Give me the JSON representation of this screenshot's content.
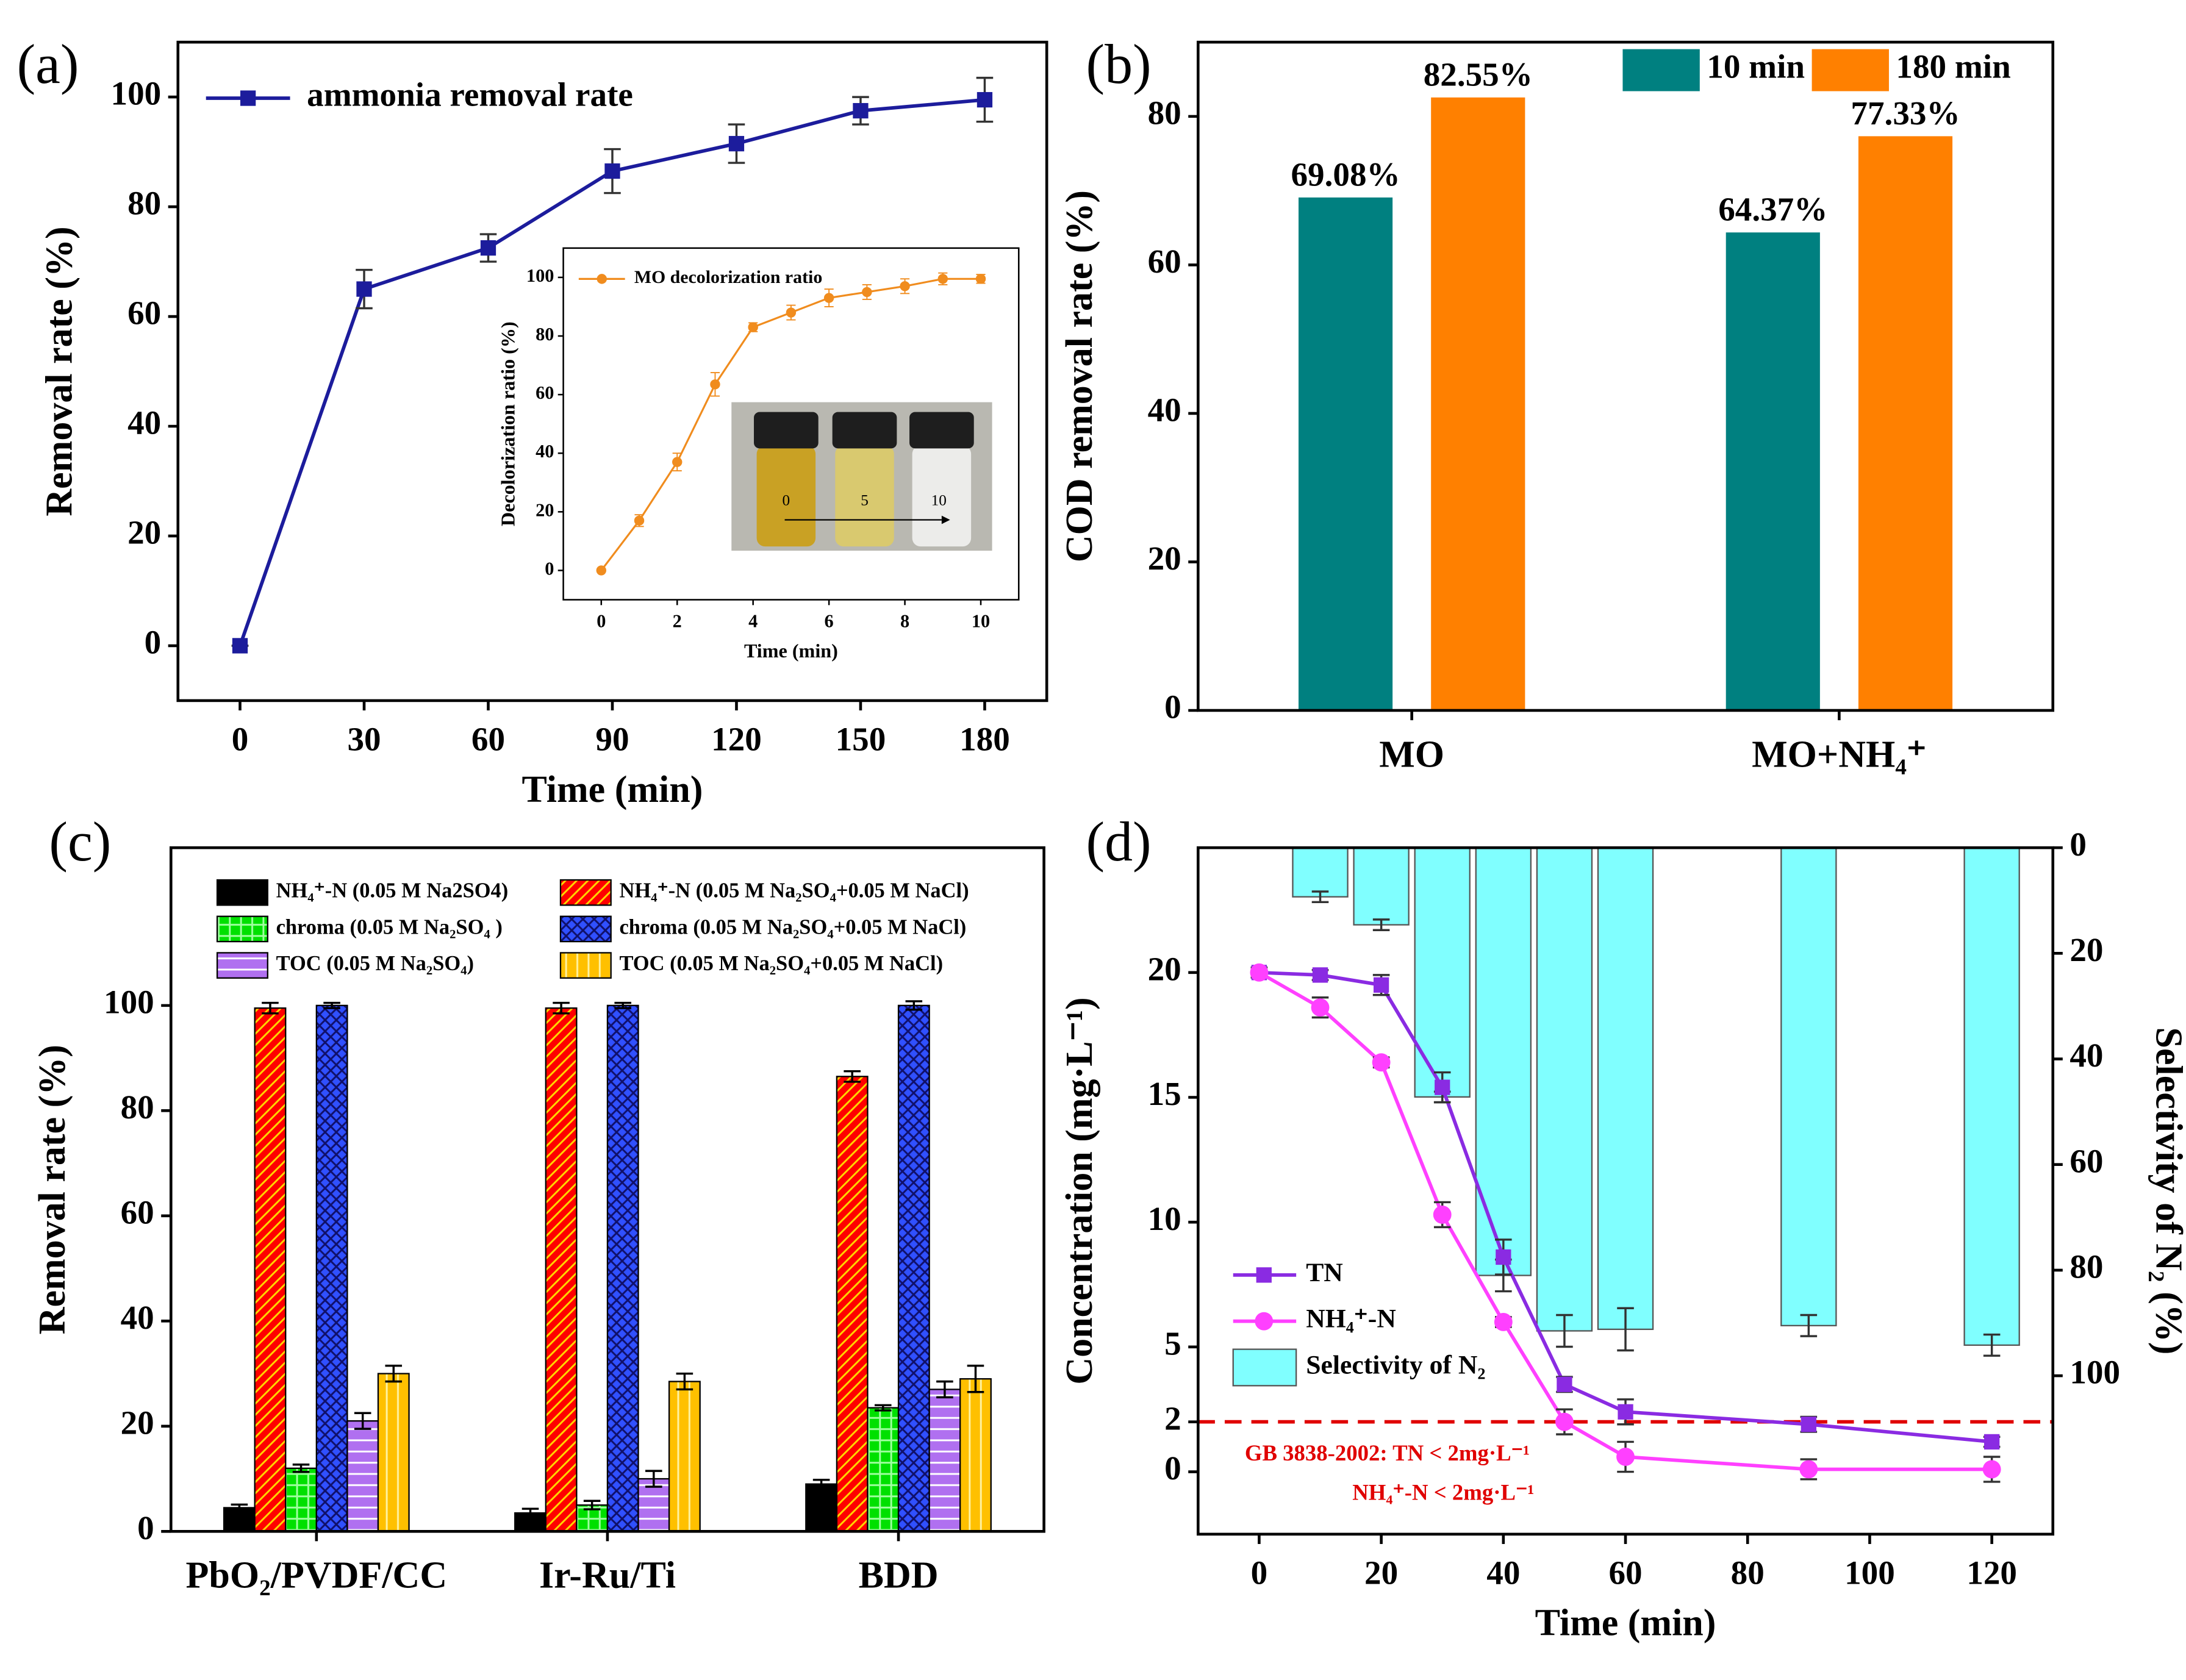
{
  "chart_data": [
    {
      "type": "line",
      "panel": "(a)",
      "x_label": "Time (min)",
      "y_label": "Removal rate  (%)",
      "x": [
        0,
        30,
        60,
        90,
        120,
        150,
        180
      ],
      "series": [
        {
          "name": "ammonia removal rate",
          "color": "#1c1c9c",
          "marker": "square",
          "values": [
            0,
            65,
            72.5,
            86.5,
            91.5,
            97.5,
            99.5
          ],
          "errors": [
            0,
            3.5,
            2.5,
            4,
            3.5,
            2.5,
            4
          ]
        }
      ],
      "xlim": [
        -15,
        195
      ],
      "xticks": [
        0,
        30,
        60,
        90,
        120,
        150,
        180
      ],
      "ylim": [
        -10,
        110
      ],
      "yticks": [
        0,
        20,
        40,
        60,
        80,
        100
      ],
      "legend": "upper left"
    },
    {
      "type": "line",
      "x_label": "Time (min)",
      "y_label": "Decolorization ratio (%)",
      "x": [
        0,
        1,
        2,
        3,
        4,
        5,
        6,
        7,
        8,
        9,
        10
      ],
      "series": [
        {
          "name": "MO decolorization ratio",
          "color": "#f08c1e",
          "marker": "circle",
          "values": [
            0,
            17,
            37,
            63.5,
            83,
            88,
            93,
            95,
            97,
            99.5,
            99.5
          ],
          "errors": [
            0,
            2,
            3,
            4,
            1.5,
            2.5,
            3,
            2.5,
            2.5,
            2,
            1.5
          ]
        }
      ],
      "xlim": [
        -1,
        11
      ],
      "xticks": [
        0,
        2,
        4,
        6,
        8,
        10
      ],
      "ylim": [
        -10,
        110
      ],
      "yticks": [
        0,
        20,
        40,
        60,
        80,
        100
      ],
      "legend": "upper left",
      "photo_labels": [
        "0",
        "5",
        "10"
      ]
    },
    {
      "type": "bar",
      "panel": "(b)",
      "y_label": "COD removal rate  (%)",
      "categories": [
        "MO",
        "MO+NH₄⁺"
      ],
      "series": [
        {
          "name": "10 min",
          "color": "#008080",
          "values": [
            69.08,
            64.37
          ],
          "value_labels": [
            "69.08%",
            "64.37%"
          ]
        },
        {
          "name": "180 min",
          "color": "#ff8000",
          "values": [
            82.55,
            77.33
          ],
          "value_labels": [
            "82.55%",
            "77.33%"
          ]
        }
      ],
      "ylim": [
        0,
        90
      ],
      "yticks": [
        0,
        20,
        40,
        60,
        80
      ],
      "legend": "upper right"
    },
    {
      "type": "bar",
      "panel": "(c)",
      "y_label": "Removal rate (%)",
      "categories": [
        "PbO₂/PVDF/CC",
        "Ir-Ru/Ti",
        "BDD"
      ],
      "series": [
        {
          "name": "NH₄⁺-N (0.05 M Na2SO4)",
          "color": "#000000",
          "pattern": "solid",
          "values": [
            4.5,
            3.5,
            9
          ],
          "errors": [
            0.6,
            0.8,
            0.8
          ]
        },
        {
          "name": "NH₄⁺-N (0.05 M Na₂SO₄+0.05 M NaCl)",
          "color": "#ff0000",
          "pattern": "diagonal",
          "pattern_color": "#ffd700",
          "values": [
            99.5,
            99.5,
            86.5
          ],
          "errors": [
            1,
            1,
            1
          ]
        },
        {
          "name": "chroma  (0.05 M Na₂SO₄ )",
          "color": "#00e000",
          "pattern": "grid",
          "pattern_color": "#a0ffa0",
          "values": [
            12,
            5,
            23.5
          ],
          "errors": [
            0.7,
            0.8,
            0.5
          ]
        },
        {
          "name": "chroma (0.05 M Na₂SO₄+0.05 M NaCl)",
          "color": "#3050ff",
          "pattern": "crosshatch",
          "pattern_color": "#10106a",
          "values": [
            100,
            100,
            100
          ],
          "errors": [
            0.5,
            0.5,
            0.8
          ]
        },
        {
          "name": "TOC (0.05 M Na₂SO₄)",
          "color": "#b070f0",
          "pattern": "horizontal",
          "pattern_color": "#ffffff",
          "values": [
            21,
            10,
            27
          ],
          "errors": [
            1.5,
            1.5,
            1.5
          ]
        },
        {
          "name": "TOC (0.05 M Na₂SO₄+0.05 M NaCl)",
          "color": "#ffc000",
          "pattern": "vertical",
          "pattern_color": "#fff2a0",
          "values": [
            30,
            28.5,
            29
          ],
          "errors": [
            1.5,
            1.5,
            2.5
          ]
        }
      ],
      "ylim": [
        0,
        130
      ],
      "yticks": [
        0,
        20,
        40,
        60,
        80,
        100
      ],
      "legend": "upper center"
    },
    {
      "type": "combo",
      "panel": "(d)",
      "x_label": "Time (min)",
      "y_label": "Concentration (mg·L⁻¹)",
      "y2_label": "Selectivity of N₂ (%)",
      "x": [
        0,
        10,
        20,
        30,
        40,
        50,
        60,
        90,
        120
      ],
      "series": [
        {
          "name": "TN",
          "color": "#8a2be2",
          "marker": "square",
          "values": [
            20,
            19.9,
            19.5,
            15.4,
            8.6,
            3.5,
            2.4,
            1.9,
            1.2
          ],
          "errors": [
            0.2,
            0.2,
            0.4,
            0.6,
            0.7,
            0.3,
            0.5,
            0.3,
            0.2
          ]
        },
        {
          "name": "NH₄⁺-N",
          "color": "#ff40ff",
          "marker": "circle",
          "values": [
            20,
            18.6,
            16.4,
            10.3,
            6,
            2,
            0.6,
            0.1,
            0.1
          ],
          "errors": [
            0.1,
            0.4,
            0.2,
            0.5,
            0.2,
            0.5,
            0.6,
            0.4,
            0.5
          ]
        },
        {
          "name": "Selectivity of N₂",
          "color": "#80ffff",
          "kind": "bar",
          "axis": "y2",
          "x": [
            10,
            20,
            30,
            40,
            50,
            60,
            90,
            120
          ],
          "values": [
            9.3,
            14.6,
            47.2,
            81,
            91.5,
            91.2,
            90.5,
            94.2
          ],
          "errors": [
            1,
            1,
            1,
            3,
            3,
            4,
            2,
            2
          ]
        }
      ],
      "xlim": [
        -10,
        130
      ],
      "xticks": [
        0,
        20,
        40,
        60,
        80,
        100,
        120
      ],
      "ylim": [
        -2.5,
        25
      ],
      "yticks": [
        0,
        2,
        5,
        10,
        15,
        20
      ],
      "y2lim": [
        130,
        0
      ],
      "y2ticks": [
        0,
        20,
        40,
        60,
        80,
        100
      ],
      "reference_line": {
        "value": 2,
        "color": "#e00000"
      },
      "annotations": [
        "GB 3838-2002: TN < 2mg·L⁻¹",
        "NH₄⁺-N < 2mg·L⁻¹"
      ],
      "legend": "lower left"
    }
  ]
}
